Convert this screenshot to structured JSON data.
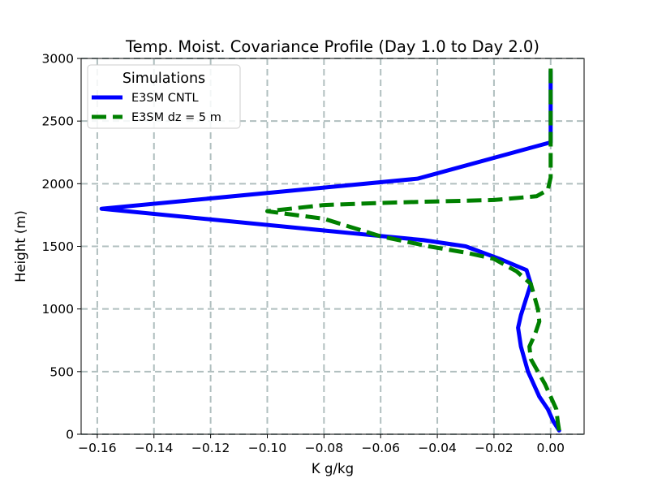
{
  "chart_data": {
    "type": "line",
    "title": "Temp. Moist. Covariance Profile (Day 1.0 to Day 2.0)",
    "xlabel": "K g/kg",
    "ylabel": "Height (m)",
    "xlim": [
      -0.1657,
      0.0118
    ],
    "ylim": [
      0,
      3000
    ],
    "xticks": [
      -0.16,
      -0.14,
      -0.12,
      -0.1,
      -0.08,
      -0.06,
      -0.04,
      -0.02,
      0.0
    ],
    "xtick_labels": [
      "−0.16",
      "−0.14",
      "−0.12",
      "−0.10",
      "−0.08",
      "−0.06",
      "−0.04",
      "−0.02",
      "0.00"
    ],
    "yticks": [
      0,
      500,
      1000,
      1500,
      2000,
      2500,
      3000
    ],
    "ytick_labels": [
      "0",
      "500",
      "1000",
      "1500",
      "2000",
      "2500",
      "3000"
    ],
    "grid": true,
    "legend": {
      "title": "Simulations",
      "location": "upper-left"
    },
    "series": [
      {
        "name": "E3SM CNTL",
        "color": "#0000ff",
        "style": "solid",
        "x": [
          0.003,
          0.001,
          -0.001,
          -0.004,
          -0.006,
          -0.008,
          -0.0105,
          -0.0115,
          -0.0105,
          -0.007,
          -0.0085,
          -0.018,
          -0.024,
          -0.03,
          -0.045,
          -0.068,
          -0.1585,
          -0.047,
          0.0,
          0.0,
          0.0,
          0.0
        ],
        "y": [
          30,
          100,
          200,
          300,
          400,
          500,
          700,
          850,
          950,
          1200,
          1310,
          1400,
          1450,
          1500,
          1550,
          1600,
          1800,
          2040,
          2330,
          2500,
          2700,
          2900
        ]
      },
      {
        "name": "E3SM dz = 5 m",
        "color": "#008000",
        "style": "dashed",
        "x": [
          0.003,
          0.0025,
          0.002,
          0.0,
          -0.002,
          -0.0045,
          -0.007,
          -0.0075,
          -0.0055,
          -0.004,
          -0.0045,
          -0.007,
          -0.012,
          -0.02,
          -0.03,
          -0.043,
          -0.06,
          -0.07,
          -0.08,
          -0.1,
          -0.08,
          -0.055,
          -0.02,
          -0.005,
          -0.001,
          0.0,
          0.0,
          0.0
        ],
        "y": [
          30,
          100,
          200,
          300,
          400,
          500,
          600,
          700,
          800,
          900,
          1000,
          1200,
          1300,
          1400,
          1450,
          1500,
          1580,
          1650,
          1720,
          1780,
          1830,
          1850,
          1870,
          1900,
          1950,
          2050,
          2500,
          2930
        ]
      }
    ]
  }
}
